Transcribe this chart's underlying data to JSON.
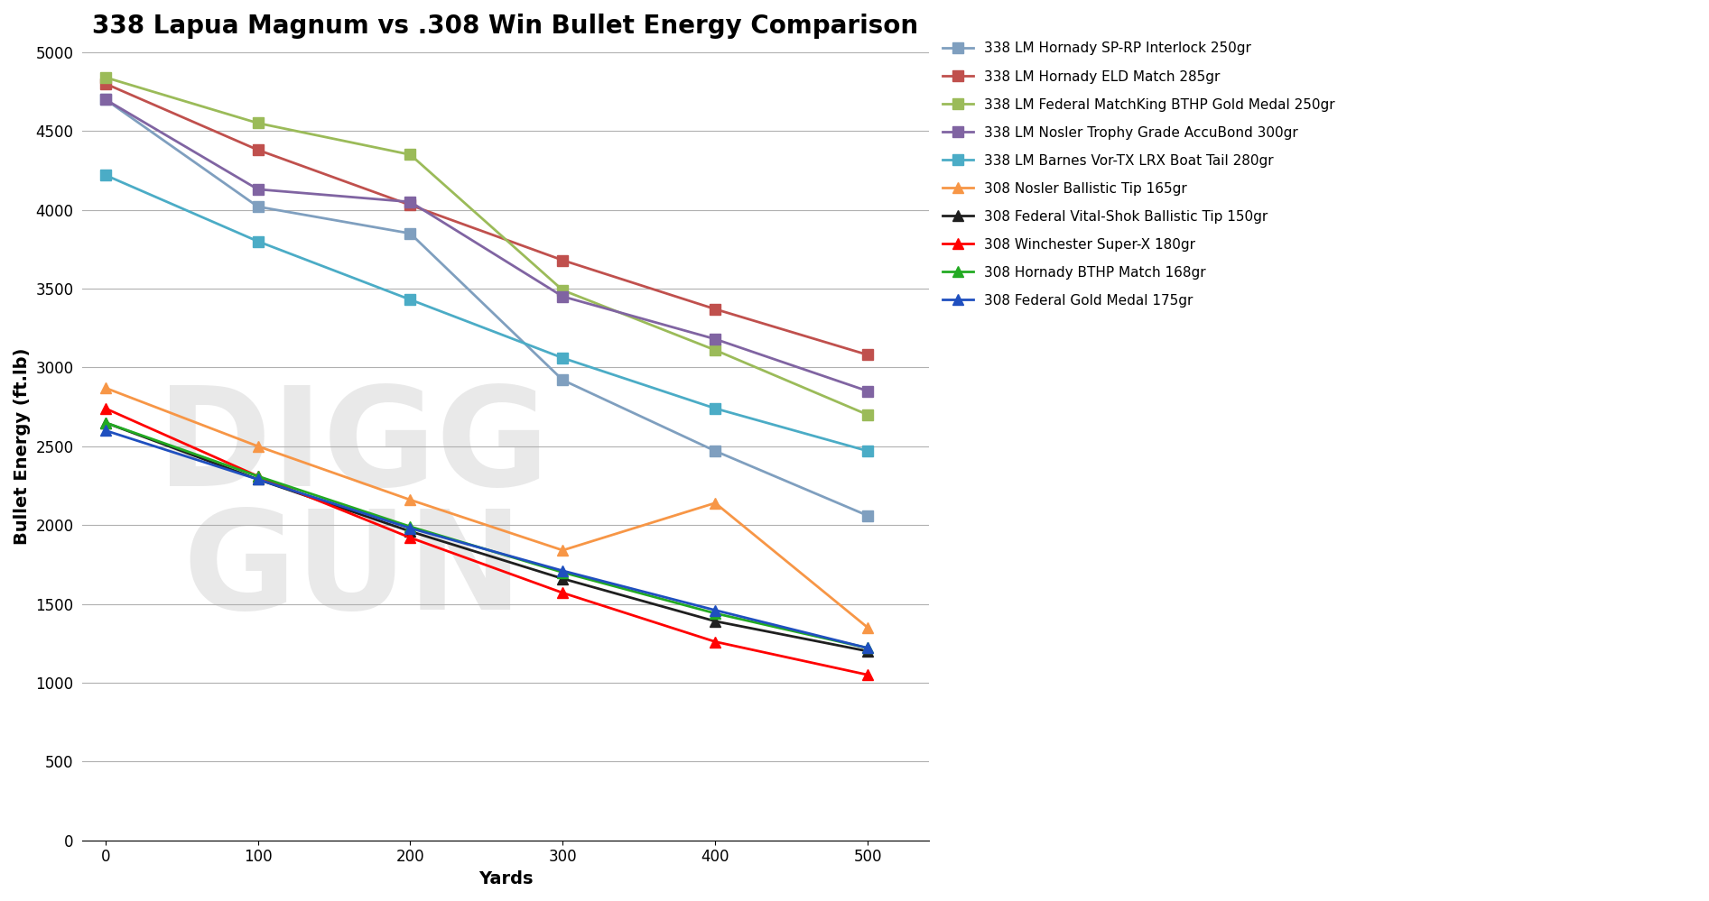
{
  "title": "338 Lapua Magnum vs .308 Win Bullet Energy Comparison",
  "xlabel": "Yards",
  "ylabel": "Bullet Energy (ft.lb)",
  "yards": [
    0,
    100,
    200,
    300,
    400,
    500
  ],
  "series": [
    {
      "label": "338 LM Hornady SP-RP Interlock 250gr",
      "color": "#7F9FBF",
      "marker": "s",
      "values": [
        4700,
        4020,
        3850,
        2920,
        2470,
        2060
      ]
    },
    {
      "label": "338 LM Hornady ELD Match 285gr",
      "color": "#C0504D",
      "marker": "s",
      "values": [
        4800,
        4380,
        4030,
        3680,
        3370,
        3080
      ]
    },
    {
      "label": "338 LM Federal MatchKing BTHP Gold Medal 250gr",
      "color": "#9BBB59",
      "marker": "s",
      "values": [
        4840,
        4550,
        4350,
        3490,
        3110,
        2700
      ]
    },
    {
      "label": "338 LM Nosler Trophy Grade AccuBond 300gr",
      "color": "#8064A2",
      "marker": "s",
      "values": [
        4700,
        4130,
        4050,
        3450,
        3180,
        2850
      ]
    },
    {
      "label": "338 LM Barnes Vor-TX LRX Boat Tail 280gr",
      "color": "#4BACC6",
      "marker": "s",
      "values": [
        4220,
        3800,
        3430,
        3060,
        2740,
        2470
      ]
    },
    {
      "label": "308 Nosler Ballistic Tip 165gr",
      "color": "#F79646",
      "marker": "^",
      "values": [
        2870,
        2500,
        2160,
        1840,
        2140,
        1350
      ]
    },
    {
      "label": "308 Federal Vital-Shok Ballistic Tip 150gr",
      "color": "#1F1F1F",
      "marker": "^",
      "values": [
        2650,
        2290,
        1960,
        1660,
        1390,
        1200
      ]
    },
    {
      "label": "308 Winchester Super-X 180gr",
      "color": "#FF0000",
      "marker": "^",
      "values": [
        2740,
        2310,
        1920,
        1570,
        1260,
        1050
      ]
    },
    {
      "label": "308 Hornady BTHP Match 168gr",
      "color": "#22AA22",
      "marker": "^",
      "values": [
        2650,
        2310,
        1990,
        1700,
        1440,
        1220
      ]
    },
    {
      "label": "308 Federal Gold Medal 175gr",
      "color": "#1F4FBF",
      "marker": "^",
      "values": [
        2600,
        2290,
        1980,
        1710,
        1460,
        1220
      ]
    }
  ],
  "ylim": [
    0,
    5000
  ],
  "yticks": [
    0,
    500,
    1000,
    1500,
    2000,
    2500,
    3000,
    3500,
    4000,
    4500,
    5000
  ],
  "xlim": [
    -15,
    540
  ],
  "xticks": [
    0,
    100,
    200,
    300,
    400,
    500
  ],
  "background_color": "#FFFFFF",
  "grid_color": "#B0B0B0",
  "title_fontsize": 20,
  "axis_label_fontsize": 14,
  "tick_fontsize": 12,
  "legend_fontsize": 11,
  "marker_size": 8,
  "line_width": 2.0
}
